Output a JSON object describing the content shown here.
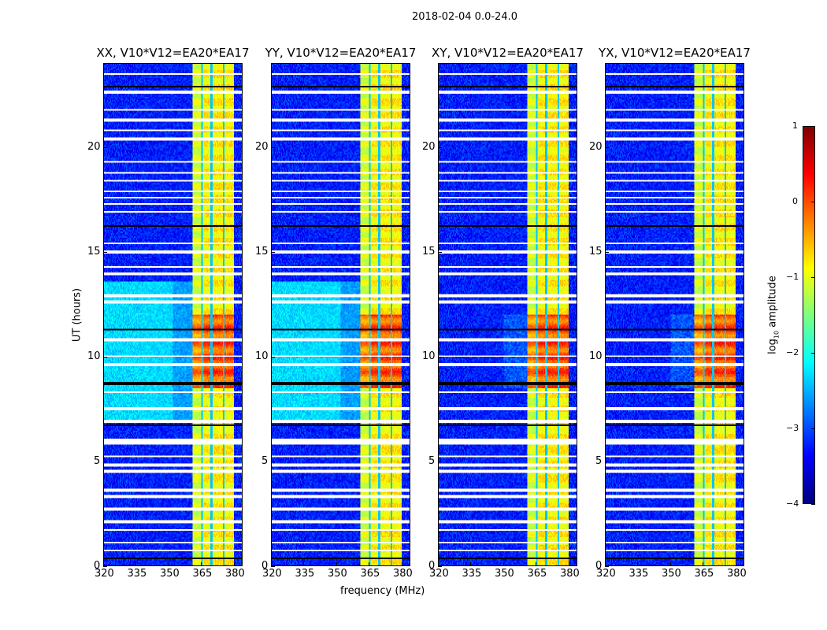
{
  "suptitle": "2018-02-04 0.0-24.0",
  "chart_data": {
    "type": "heatmap",
    "title": "2018-02-04 0.0-24.0",
    "xlabel": "frequency (MHz)",
    "ylabel": "UT (hours)",
    "xlim": [
      320,
      384
    ],
    "ylim": [
      0,
      24
    ],
    "xticks": [
      320,
      335,
      350,
      365,
      380
    ],
    "yticks": [
      0,
      5,
      10,
      15,
      20
    ],
    "panels": [
      {
        "title": "XX, V10*V12=EA20*EA17",
        "haze": true
      },
      {
        "title": "YY, V10*V12=EA20*EA17",
        "haze": true
      },
      {
        "title": "XY, V10*V12=EA20*EA17",
        "haze": false
      },
      {
        "title": "YX, V10*V12=EA20*EA17",
        "haze": false
      }
    ],
    "rfi_band_mhz": [
      361,
      380.5
    ],
    "band_gaps_mhz": [
      365.5,
      370,
      375.6
    ],
    "bright_period_hours": [
      8.5,
      12
    ],
    "flagged_rows_hours": [
      0.7,
      1.1,
      1.7,
      2.1,
      2.7,
      3.3,
      3.6,
      4.5,
      4.8,
      5.2,
      5.85,
      6.0,
      6.9,
      7.5,
      8.3,
      9.6,
      10.0,
      10.8,
      12.6,
      12.9,
      13.95,
      14.3,
      15.0,
      15.4,
      16.9,
      17.3,
      17.6,
      17.9,
      18.4,
      18.8,
      19.3,
      20.4,
      20.8,
      21.3,
      21.8,
      22.6,
      22.7,
      23.5
    ],
    "zero_rows_hours": [
      0.37,
      6.7,
      8.7,
      11.3,
      16.25,
      22.9
    ],
    "colorbar": {
      "label_main": "log",
      "label_sub": "10",
      "label_rest": " amplitude",
      "ticks": [
        1,
        0,
        -1,
        -2,
        -3,
        -4
      ],
      "range": [
        -4,
        1
      ],
      "colormap": "jet"
    }
  }
}
